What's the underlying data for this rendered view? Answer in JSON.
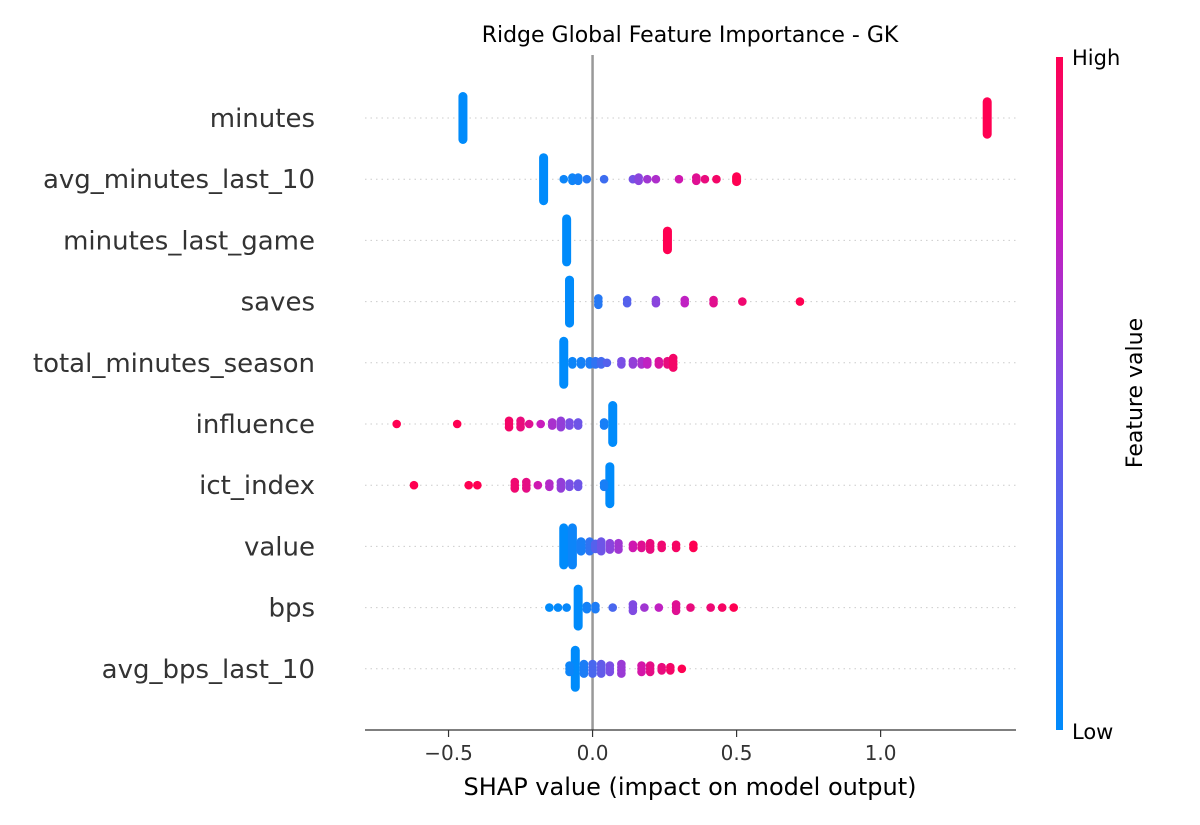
{
  "chart_data": {
    "type": "scatter",
    "title": "Ridge Global Feature Importance - GK",
    "xlabel": "SHAP value (impact on model output)",
    "ylabel": "",
    "xlim": [
      -0.79,
      1.47
    ],
    "xticks": [
      -0.5,
      0.0,
      0.5,
      1.0
    ],
    "xtick_labels": [
      "−0.5",
      "0.0",
      "0.5",
      "1.0"
    ],
    "zero_line": 0.0,
    "grid": false,
    "colorbar": {
      "label": "Feature value",
      "high_label": "High",
      "low_label": "Low",
      "low_color": "#008bfb",
      "high_color": "#ff0052"
    },
    "features": [
      {
        "name": "minutes",
        "points": [
          [
            -0.45,
            0.0,
            40
          ],
          [
            1.37,
            1.0,
            18
          ]
        ]
      },
      {
        "name": "avg_minutes_last_10",
        "points": [
          [
            -0.17,
            0.0,
            30
          ],
          [
            -0.1,
            0.05,
            1
          ],
          [
            -0.07,
            0.06,
            2
          ],
          [
            -0.05,
            0.08,
            2
          ],
          [
            -0.02,
            0.15,
            1
          ],
          [
            0.04,
            0.25,
            1
          ],
          [
            0.14,
            0.48,
            1
          ],
          [
            0.16,
            0.55,
            2
          ],
          [
            0.19,
            0.62,
            1
          ],
          [
            0.22,
            0.66,
            1
          ],
          [
            0.3,
            0.78,
            1
          ],
          [
            0.36,
            0.85,
            2
          ],
          [
            0.39,
            0.9,
            1
          ],
          [
            0.43,
            0.95,
            1
          ],
          [
            0.5,
            1.0,
            6
          ]
        ]
      },
      {
        "name": "minutes_last_game",
        "points": [
          [
            -0.09,
            0.0,
            30
          ],
          [
            0.26,
            1.0,
            12
          ]
        ]
      },
      {
        "name": "saves",
        "points": [
          [
            -0.08,
            0.0,
            30
          ],
          [
            0.02,
            0.15,
            3
          ],
          [
            0.12,
            0.35,
            2
          ],
          [
            0.22,
            0.55,
            2
          ],
          [
            0.32,
            0.72,
            2
          ],
          [
            0.42,
            0.86,
            2
          ],
          [
            0.52,
            0.93,
            1
          ],
          [
            0.72,
            1.0,
            1
          ]
        ]
      },
      {
        "name": "total_minutes_season",
        "points": [
          [
            -0.1,
            0.0,
            30
          ],
          [
            -0.07,
            0.05,
            2
          ],
          [
            -0.04,
            0.08,
            2
          ],
          [
            -0.01,
            0.12,
            2
          ],
          [
            0.01,
            0.2,
            2
          ],
          [
            0.03,
            0.28,
            2
          ],
          [
            0.05,
            0.35,
            1
          ],
          [
            0.1,
            0.5,
            2
          ],
          [
            0.14,
            0.58,
            2
          ],
          [
            0.17,
            0.65,
            2
          ],
          [
            0.19,
            0.72,
            2
          ],
          [
            0.23,
            0.82,
            2
          ],
          [
            0.26,
            0.9,
            2
          ],
          [
            0.28,
            0.95,
            4
          ]
        ]
      },
      {
        "name": "influence",
        "points": [
          [
            0.07,
            0.0,
            20
          ],
          [
            0.04,
            0.1,
            2
          ],
          [
            -0.05,
            0.45,
            2
          ],
          [
            -0.08,
            0.5,
            2
          ],
          [
            -0.11,
            0.58,
            3
          ],
          [
            -0.14,
            0.65,
            2
          ],
          [
            -0.18,
            0.75,
            1
          ],
          [
            -0.22,
            0.85,
            1
          ],
          [
            -0.25,
            0.9,
            3
          ],
          [
            -0.29,
            0.95,
            3
          ],
          [
            -0.47,
            1.0,
            1
          ],
          [
            -0.68,
            1.0,
            1
          ]
        ]
      },
      {
        "name": "ict_index",
        "points": [
          [
            0.06,
            0.0,
            20
          ],
          [
            0.04,
            0.1,
            2
          ],
          [
            -0.05,
            0.45,
            2
          ],
          [
            -0.08,
            0.5,
            2
          ],
          [
            -0.11,
            0.58,
            3
          ],
          [
            -0.15,
            0.68,
            2
          ],
          [
            -0.19,
            0.78,
            1
          ],
          [
            -0.23,
            0.88,
            3
          ],
          [
            -0.27,
            0.93,
            3
          ],
          [
            -0.4,
            1.0,
            1
          ],
          [
            -0.43,
            1.0,
            1
          ],
          [
            -0.62,
            1.0,
            1
          ]
        ]
      },
      {
        "name": "value",
        "points": [
          [
            -0.1,
            0.0,
            20
          ],
          [
            -0.07,
            0.05,
            20
          ],
          [
            -0.04,
            0.1,
            8
          ],
          [
            -0.01,
            0.2,
            4
          ],
          [
            0.01,
            0.35,
            6
          ],
          [
            0.03,
            0.45,
            4
          ],
          [
            0.06,
            0.55,
            3
          ],
          [
            0.09,
            0.62,
            3
          ],
          [
            0.14,
            0.78,
            2
          ],
          [
            0.17,
            0.85,
            2
          ],
          [
            0.2,
            0.9,
            3
          ],
          [
            0.24,
            0.93,
            2
          ],
          [
            0.29,
            0.96,
            2
          ],
          [
            0.35,
            1.0,
            2
          ]
        ]
      },
      {
        "name": "bps",
        "points": [
          [
            -0.05,
            0.0,
            20
          ],
          [
            -0.15,
            0.0,
            1
          ],
          [
            -0.12,
            0.02,
            1
          ],
          [
            -0.09,
            0.03,
            1
          ],
          [
            -0.02,
            0.08,
            2
          ],
          [
            0.01,
            0.12,
            2
          ],
          [
            0.07,
            0.3,
            1
          ],
          [
            0.14,
            0.52,
            3
          ],
          [
            0.18,
            0.62,
            1
          ],
          [
            0.23,
            0.72,
            1
          ],
          [
            0.29,
            0.85,
            3
          ],
          [
            0.34,
            0.9,
            1
          ],
          [
            0.41,
            0.92,
            1
          ],
          [
            0.45,
            0.96,
            1
          ],
          [
            0.49,
            1.0,
            1
          ]
        ]
      },
      {
        "name": "avg_bps_last_10",
        "points": [
          [
            -0.06,
            0.0,
            20
          ],
          [
            -0.08,
            0.05,
            3
          ],
          [
            -0.03,
            0.12,
            4
          ],
          [
            0.0,
            0.3,
            4
          ],
          [
            0.03,
            0.4,
            4
          ],
          [
            0.06,
            0.5,
            3
          ],
          [
            0.1,
            0.6,
            4
          ],
          [
            0.17,
            0.8,
            3
          ],
          [
            0.2,
            0.88,
            3
          ],
          [
            0.24,
            0.9,
            2
          ],
          [
            0.27,
            0.95,
            2
          ],
          [
            0.31,
            1.0,
            1
          ]
        ]
      }
    ]
  }
}
